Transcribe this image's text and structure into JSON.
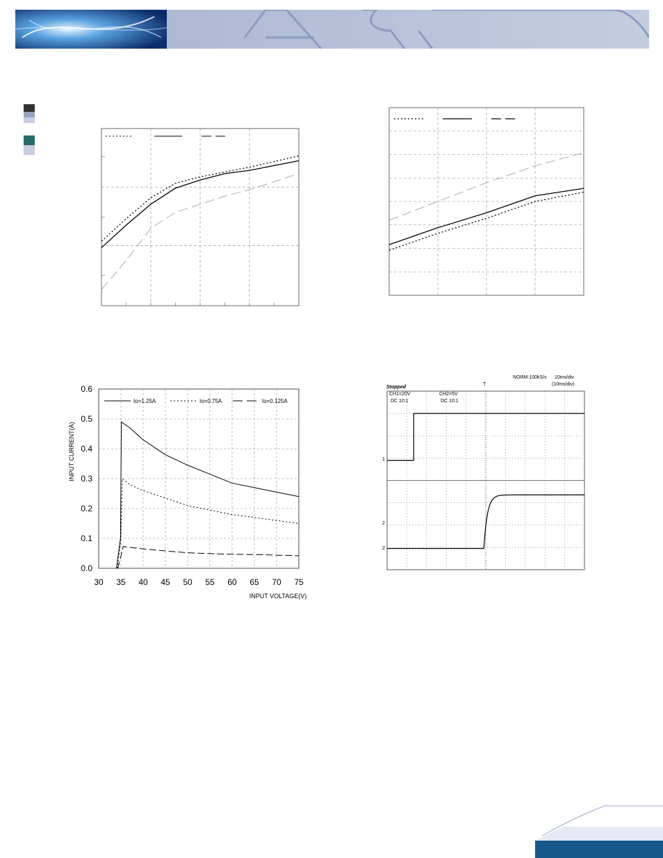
{
  "colors": {
    "header_blue": "#9aa9c9",
    "header_dark": "#1a3c7a",
    "footer_teal": "#17588a",
    "grid": "#888888",
    "swatch_dark": "#333333",
    "swatch_teal": "#2a6a6a",
    "swatch_light": "#c8cde0"
  },
  "header": {
    "logo_icon": "glow-abstract-image"
  },
  "chart_data": [
    {
      "type": "line",
      "title": "",
      "xlabel": "",
      "ylabel": "",
      "grid": true,
      "legend_position": "top-left",
      "x": [
        0,
        0.5,
        1,
        1.5,
        2,
        2.5,
        3,
        4
      ],
      "series": [
        {
          "name": "",
          "style": "dotted",
          "values": [
            0.3,
            0.44,
            0.57,
            0.66,
            0.7,
            0.73,
            0.76,
            0.83
          ]
        },
        {
          "name": "",
          "style": "solid",
          "values": [
            0.26,
            0.4,
            0.53,
            0.63,
            0.68,
            0.72,
            0.74,
            0.8
          ]
        },
        {
          "name": "",
          "style": "dashed",
          "values": [
            0.0,
            0.18,
            0.38,
            0.48,
            0.53,
            0.58,
            0.62,
            0.72
          ]
        }
      ],
      "xlim": [
        0,
        4
      ],
      "ylim": [
        -0.1,
        1.0
      ]
    },
    {
      "type": "line",
      "title": "",
      "xlabel": "",
      "ylabel": "",
      "grid": true,
      "legend_position": "top-left",
      "x": [
        0,
        1,
        2,
        3,
        4
      ],
      "series": [
        {
          "name": "",
          "style": "dotted",
          "values": [
            0.24,
            0.33,
            0.41,
            0.5,
            0.55
          ]
        },
        {
          "name": "",
          "style": "solid",
          "values": [
            0.27,
            0.36,
            0.44,
            0.53,
            0.57
          ]
        },
        {
          "name": "",
          "style": "dashed",
          "values": [
            0.4,
            0.5,
            0.6,
            0.69,
            0.76
          ]
        }
      ],
      "xlim": [
        0,
        4
      ],
      "ylim": [
        0,
        1
      ]
    },
    {
      "type": "line",
      "title": "",
      "xlabel": "INPUT VOLTAGE(V)",
      "ylabel": "INPUT CURRENT(A)",
      "grid": true,
      "legend_position": "top",
      "x_ticks": [
        "30",
        "35",
        "40",
        "45",
        "50",
        "55",
        "60",
        "65",
        "70",
        "75"
      ],
      "y_ticks": [
        "0.0",
        "0.1",
        "0.2",
        "0.3",
        "0.4",
        "0.5",
        "0.6"
      ],
      "xlim": [
        30,
        75
      ],
      "ylim": [
        0,
        0.6
      ],
      "series": [
        {
          "name": "Io=1.25A",
          "style": "solid",
          "x": [
            34.0,
            34.9,
            35.1,
            37,
            40,
            45,
            50,
            55,
            60,
            65,
            70,
            75
          ],
          "values": [
            0.0,
            0.1,
            0.49,
            0.47,
            0.43,
            0.38,
            0.345,
            0.315,
            0.285,
            0.27,
            0.255,
            0.24
          ]
        },
        {
          "name": "Io=0.75A",
          "style": "dotted",
          "x": [
            34.2,
            35.0,
            35.3,
            37,
            40,
            45,
            50,
            55,
            60,
            65,
            70,
            75
          ],
          "values": [
            0.0,
            0.1,
            0.3,
            0.28,
            0.26,
            0.235,
            0.21,
            0.195,
            0.18,
            0.17,
            0.16,
            0.15
          ]
        },
        {
          "name": "Io=0.125A",
          "style": "dashed",
          "x": [
            34.3,
            35.0,
            35.5,
            37,
            40,
            45,
            50,
            55,
            60,
            65,
            70,
            75
          ],
          "values": [
            0.0,
            0.04,
            0.073,
            0.07,
            0.065,
            0.058,
            0.052,
            0.049,
            0.047,
            0.046,
            0.044,
            0.042
          ]
        }
      ]
    },
    {
      "type": "line",
      "title": "",
      "grid": true,
      "scope": {
        "status": "Stopped",
        "mode": "NORM:100kS/s",
        "timebase": "10ms/div",
        "timebase2": "(10ms/div)",
        "ch1": "CH1=20V",
        "ch1_coupling": "DC 10:1",
        "ch2": "CH2=5V",
        "ch2_coupling": "DC 10:1",
        "marker_top": "T",
        "marker_1": "1",
        "marker_2a": "2",
        "marker_2b": "2"
      },
      "x": [
        0,
        1.35,
        1.35,
        10
      ],
      "xlim": [
        0,
        10
      ],
      "ylim": [
        0,
        8
      ],
      "series": [
        {
          "name": "CH1",
          "style": "solid",
          "values": [
            4.9,
            4.9,
            7.0,
            7.0
          ]
        },
        {
          "name": "CH2",
          "style": "solid",
          "curve": "exponential-rise",
          "low": 0.95,
          "high": 3.35,
          "rise_start_x": 4.9
        }
      ]
    }
  ]
}
